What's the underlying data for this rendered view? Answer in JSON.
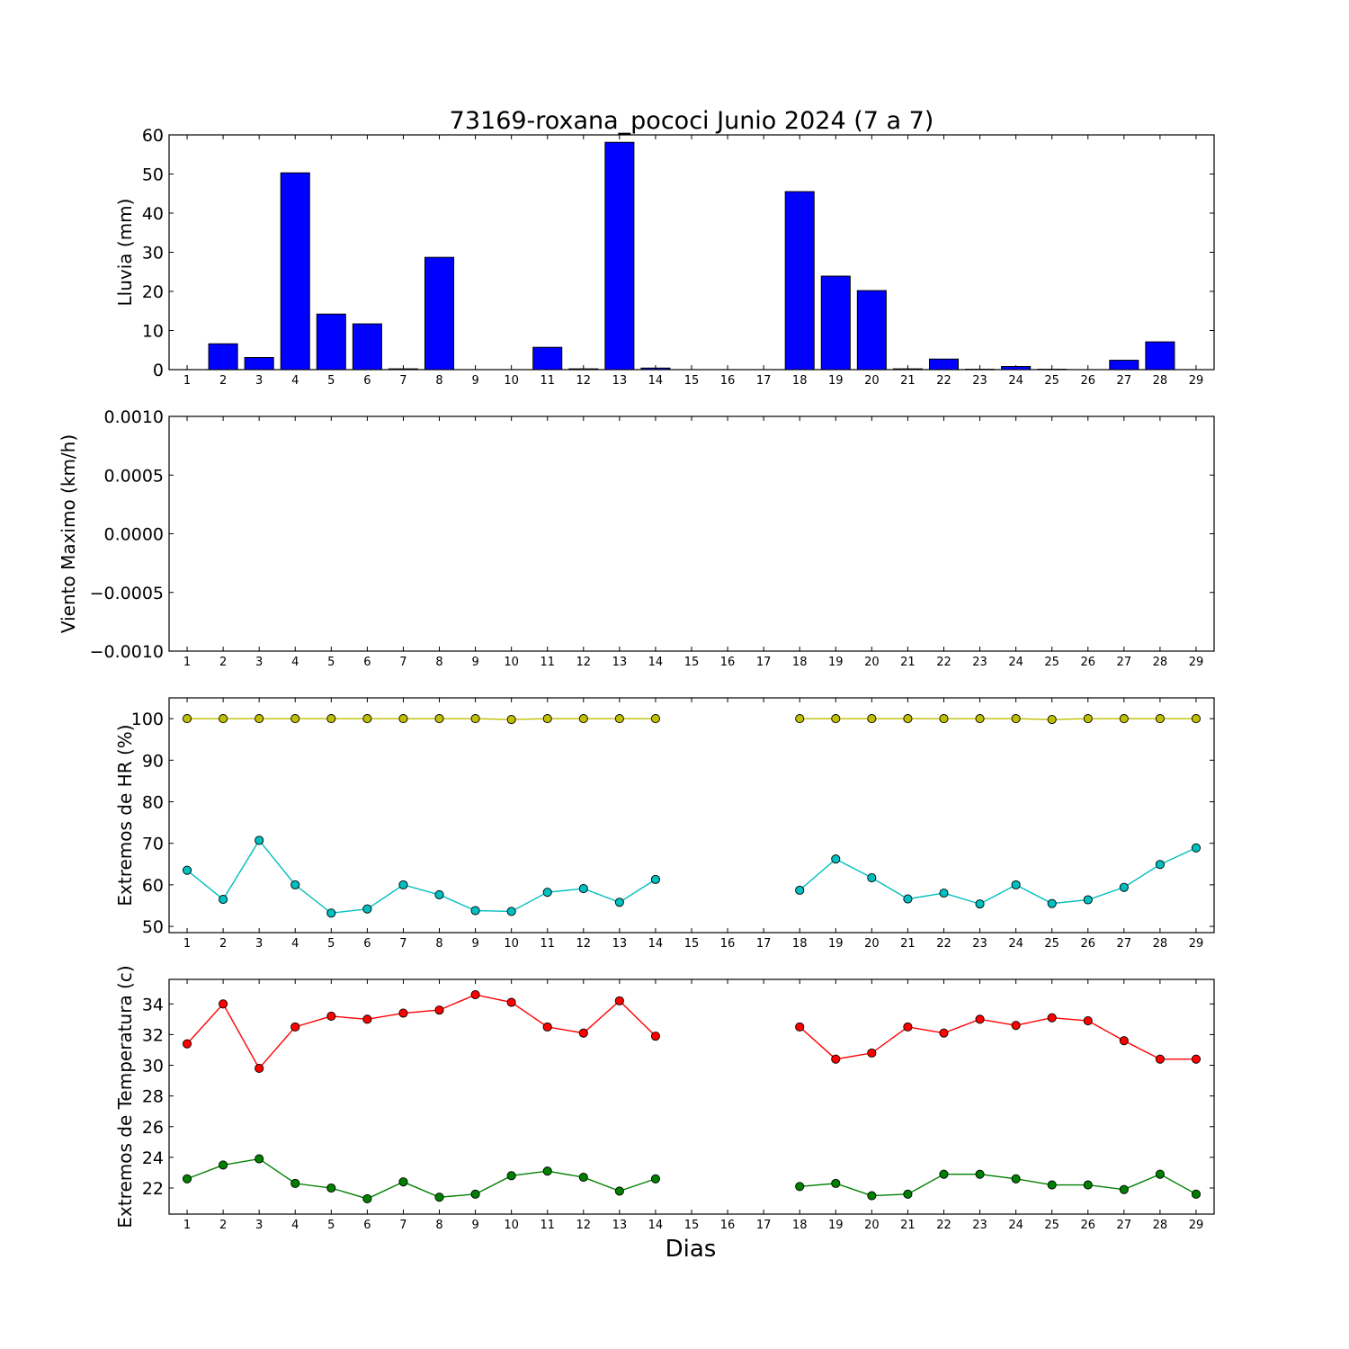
{
  "chart_data": {
    "title": "73169-roxana_pococi Junio 2024  (7 a 7)",
    "xlabel": "Dias",
    "x_ticks": [
      1,
      2,
      3,
      4,
      5,
      6,
      7,
      8,
      9,
      10,
      11,
      12,
      13,
      14,
      15,
      16,
      17,
      18,
      19,
      20,
      21,
      22,
      23,
      24,
      25,
      26,
      27,
      28,
      29
    ],
    "panels": [
      {
        "id": "lluvia",
        "type": "bar",
        "ylabel": "Lluvia (mm)",
        "ylim": [
          0,
          60
        ],
        "yticks": [
          "0",
          "10",
          "20",
          "30",
          "40",
          "50",
          "60"
        ],
        "color": "#0000ff",
        "x": [
          1,
          2,
          3,
          4,
          5,
          6,
          7,
          8,
          9,
          10,
          11,
          12,
          13,
          14,
          15,
          16,
          17,
          18,
          19,
          20,
          21,
          22,
          23,
          24,
          25,
          26,
          27,
          28,
          29
        ],
        "values": [
          0,
          6.6,
          3.1,
          50.3,
          14.2,
          11.7,
          0.2,
          28.7,
          0,
          0,
          5.7,
          0.2,
          58.1,
          0.4,
          null,
          null,
          null,
          45.5,
          23.9,
          20.2,
          0.2,
          2.7,
          0.1,
          0.8,
          0.1,
          0,
          2.4,
          7.1,
          0
        ]
      },
      {
        "id": "viento",
        "type": "line",
        "ylabel": "Viento Maximo (km/h)",
        "ylim": [
          -0.001,
          0.001
        ],
        "yticks": [
          "0.0010",
          "0.0005",
          "0.0000",
          "−0.0005",
          "−0.0010"
        ],
        "series": []
      },
      {
        "id": "hr",
        "type": "line",
        "ylabel": "Extremos de HR (%)",
        "ylim": [
          48.5,
          105
        ],
        "yticks": [
          "50",
          "60",
          "70",
          "80",
          "90",
          "100"
        ],
        "series": [
          {
            "color": "#bfbf00",
            "x": [
              1,
              2,
              3,
              4,
              5,
              6,
              7,
              8,
              9,
              10,
              11,
              12,
              13,
              14,
              18,
              19,
              20,
              21,
              22,
              23,
              24,
              25,
              26,
              27,
              28,
              29
            ],
            "values": [
              100,
              100,
              100,
              100,
              100,
              100,
              100,
              100,
              100,
              99.8,
              100,
              100,
              100,
              100,
              100,
              100,
              100,
              100,
              100,
              100,
              100,
              99.8,
              100,
              100,
              100,
              100
            ]
          },
          {
            "color": "#00bfbf",
            "x": [
              1,
              2,
              3,
              4,
              5,
              6,
              7,
              8,
              9,
              10,
              11,
              12,
              13,
              14,
              18,
              19,
              20,
              21,
              22,
              23,
              24,
              25,
              26,
              27,
              28,
              29
            ],
            "values": [
              63.5,
              56.5,
              70.7,
              60,
              53.2,
              54.2,
              60,
              57.6,
              53.8,
              53.6,
              58.2,
              59.1,
              55.8,
              61.3,
              58.7,
              66.2,
              61.7,
              56.6,
              58,
              55.4,
              60,
              55.5,
              56.4,
              59.4,
              64.9,
              68.9
            ]
          }
        ]
      },
      {
        "id": "temperatura",
        "type": "line",
        "ylabel": "Extremos de Temperatura (c)",
        "ylim": [
          20.3,
          35.6
        ],
        "yticks": [
          "22",
          "24",
          "26",
          "28",
          "30",
          "32",
          "34"
        ],
        "series": [
          {
            "color": "#ff0000",
            "x": [
              1,
              2,
              3,
              4,
              5,
              6,
              7,
              8,
              9,
              10,
              11,
              12,
              13,
              14,
              18,
              19,
              20,
              21,
              22,
              23,
              24,
              25,
              26,
              27,
              28,
              29
            ],
            "values": [
              31.4,
              34,
              29.8,
              32.5,
              33.2,
              33,
              33.4,
              33.6,
              34.6,
              34.1,
              32.5,
              32.1,
              34.2,
              31.9,
              32.5,
              30.4,
              30.8,
              32.5,
              32.1,
              33,
              32.6,
              33.1,
              32.9,
              31.6,
              30.4,
              30.4
            ]
          },
          {
            "color": "#008000",
            "x": [
              1,
              2,
              3,
              4,
              5,
              6,
              7,
              8,
              9,
              10,
              11,
              12,
              13,
              14,
              18,
              19,
              20,
              21,
              22,
              23,
              24,
              25,
              26,
              27,
              28,
              29
            ],
            "values": [
              22.6,
              23.5,
              23.9,
              22.3,
              22,
              21.3,
              22.4,
              21.4,
              21.6,
              22.8,
              23.1,
              22.7,
              21.8,
              22.6,
              22.1,
              22.3,
              21.5,
              21.6,
              22.9,
              22.9,
              22.6,
              22.2,
              22.2,
              21.9,
              22.9,
              21.6
            ]
          }
        ]
      }
    ]
  }
}
